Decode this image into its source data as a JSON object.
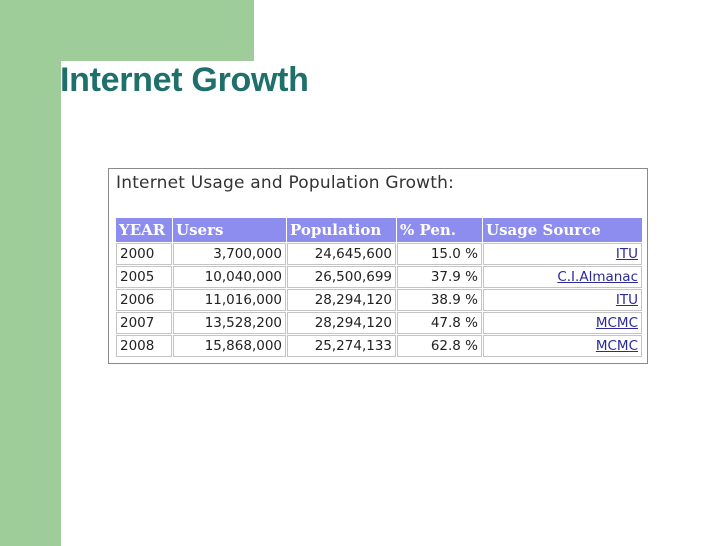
{
  "slide": {
    "title": "Internet Growth"
  },
  "panel": {
    "heading": "Internet Usage and Population Growth:"
  },
  "table": {
    "headers": [
      "YEAR",
      "Users",
      "Population",
      "% Pen.",
      "Usage Source"
    ],
    "rows": [
      [
        "2000",
        "3,700,000",
        "24,645,600",
        "15.0 %",
        "ITU"
      ],
      [
        "2005",
        "10,040,000",
        "26,500,699",
        "37.9 %",
        "C.I.Almanac"
      ],
      [
        "2006",
        "11,016,000",
        "28,294,120",
        "38.9 %",
        "ITU"
      ],
      [
        "2007",
        "13,528,200",
        "28,294,120",
        "47.8 %",
        "MCMC"
      ],
      [
        "2008",
        "15,868,000",
        "25,274,133",
        "62.8 %",
        "MCMC"
      ]
    ]
  },
  "colors": {
    "accent_green": "#9fcd9a",
    "title_teal": "#1f6f6a",
    "header_blue": "#8d8df0"
  }
}
